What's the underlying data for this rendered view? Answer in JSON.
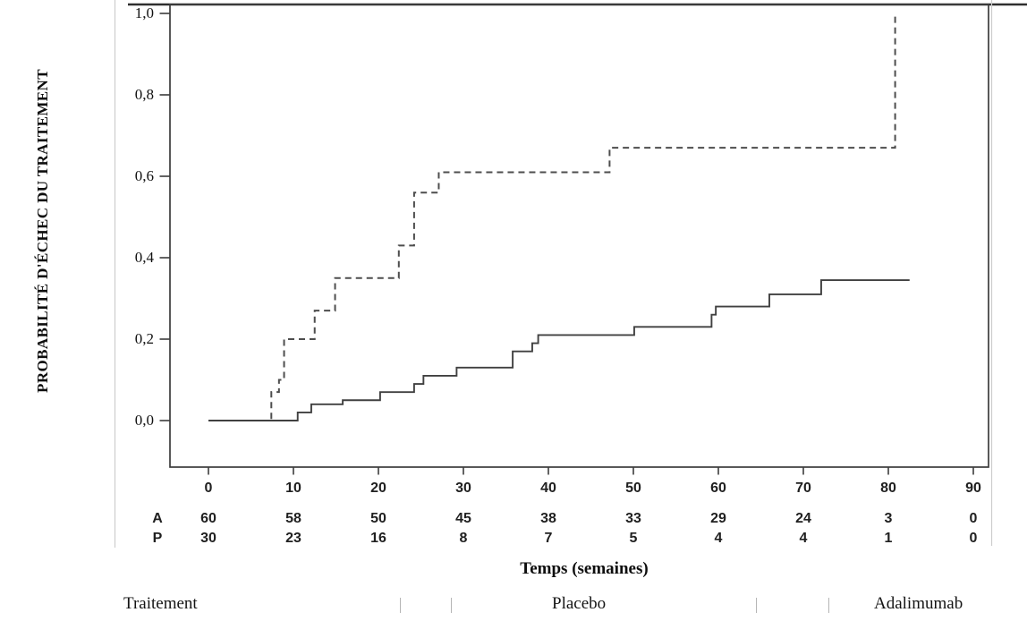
{
  "chart_data": {
    "type": "line",
    "subtype": "kaplan-meier-step",
    "title": "",
    "ylabel": "PROBABILITÉ D'ÉCHEC DU TRAITEMENT",
    "xlabel": "Temps (semaines)",
    "xlim": [
      0,
      90
    ],
    "ylim": [
      0.0,
      1.0
    ],
    "grid": false,
    "x_ticks": [
      0,
      10,
      20,
      30,
      40,
      50,
      60,
      70,
      80,
      90
    ],
    "y_ticks": [
      {
        "value": 1.0,
        "label": "1,0"
      },
      {
        "value": 0.8,
        "label": "0,8"
      },
      {
        "value": 0.6,
        "label": "0,6"
      },
      {
        "value": 0.4,
        "label": "0,4"
      },
      {
        "value": 0.2,
        "label": "0,2"
      },
      {
        "value": 0.0,
        "label": "0,0"
      }
    ],
    "series": [
      {
        "name": "Placebo",
        "linestyle": "dashed",
        "color": "#4d4d4d",
        "end_week": 80.8,
        "steps": [
          [
            0,
            0.0
          ],
          [
            7.4,
            0.07
          ],
          [
            8.3,
            0.1
          ],
          [
            8.9,
            0.2
          ],
          [
            12.5,
            0.27
          ],
          [
            14.9,
            0.35
          ],
          [
            22.4,
            0.43
          ],
          [
            24.2,
            0.56
          ],
          [
            27.1,
            0.61
          ],
          [
            47.2,
            0.67
          ],
          [
            80.8,
            1.0
          ]
        ]
      },
      {
        "name": "Adalimumab",
        "linestyle": "solid",
        "color": "#404040",
        "end_week": 82.5,
        "steps": [
          [
            0,
            0.0
          ],
          [
            10.5,
            0.02
          ],
          [
            12.1,
            0.04
          ],
          [
            15.8,
            0.05
          ],
          [
            20.2,
            0.07
          ],
          [
            24.2,
            0.09
          ],
          [
            25.3,
            0.11
          ],
          [
            29.2,
            0.13
          ],
          [
            35.8,
            0.17
          ],
          [
            38.1,
            0.19
          ],
          [
            38.8,
            0.21
          ],
          [
            50.1,
            0.23
          ],
          [
            59.2,
            0.26
          ],
          [
            59.7,
            0.28
          ],
          [
            66.0,
            0.31
          ],
          [
            72.1,
            0.345
          ]
        ]
      }
    ],
    "risk_table": {
      "weeks": [
        0,
        10,
        20,
        30,
        40,
        50,
        60,
        70,
        80,
        90
      ],
      "rows": [
        {
          "label": "A",
          "counts": [
            60,
            58,
            50,
            45,
            38,
            33,
            29,
            24,
            3,
            0
          ]
        },
        {
          "label": "P",
          "counts": [
            30,
            23,
            16,
            8,
            7,
            5,
            4,
            4,
            1,
            0
          ]
        }
      ]
    }
  },
  "legend": {
    "title": "Traitement",
    "entries": [
      {
        "label": "Placebo",
        "linestyle": "dashed"
      },
      {
        "label": "Adalimumab",
        "linestyle": "solid"
      }
    ]
  }
}
